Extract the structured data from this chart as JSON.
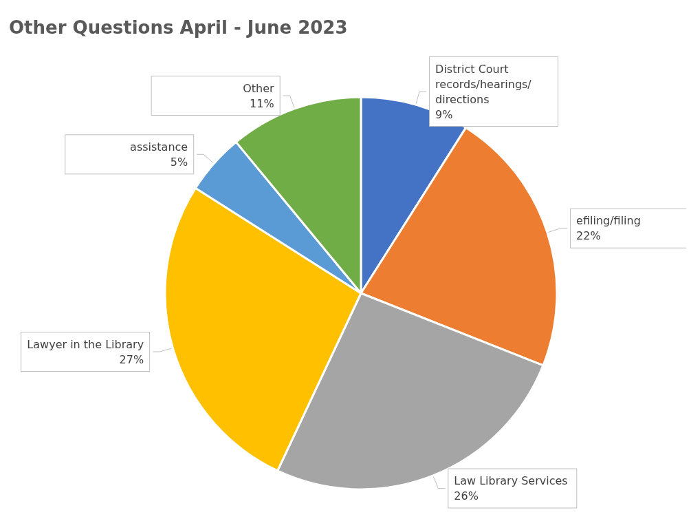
{
  "chart_data": {
    "type": "pie",
    "title": "Other Questions April - June 2023",
    "categories": [
      "District Court records/hearings/directions",
      "efiling/filing",
      "Law Library Services",
      "Lawyer in the Library",
      "assistance",
      "Other"
    ],
    "values": [
      9,
      22,
      26,
      27,
      5,
      11
    ],
    "colors": [
      "#4472c4",
      "#ed7d31",
      "#a5a5a5",
      "#ffc000",
      "#5b9bd5",
      "#70ad47"
    ],
    "value_labels": [
      "9%",
      "22%",
      "26%",
      "27%",
      "5%",
      "11%"
    ],
    "legend": false
  }
}
